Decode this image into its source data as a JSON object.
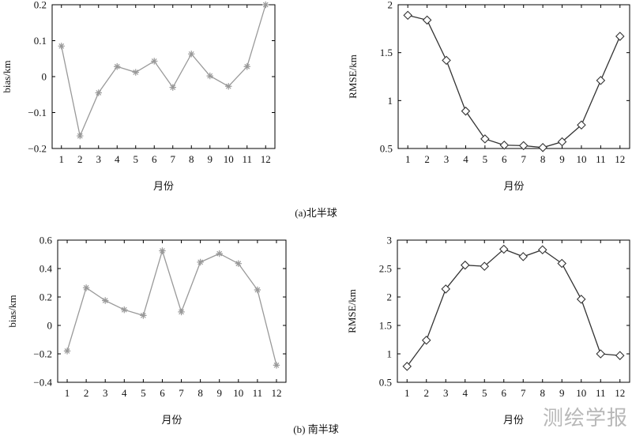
{
  "chart_data": [
    {
      "type": "line",
      "panel": "a",
      "x": [
        1,
        2,
        3,
        4,
        5,
        6,
        7,
        8,
        9,
        10,
        11,
        12
      ],
      "series": [
        {
          "values": [
            0.085,
            -0.165,
            -0.045,
            0.028,
            0.012,
            0.043,
            -0.03,
            0.063,
            0.002,
            -0.027,
            0.028,
            0.2
          ],
          "color": "#999999",
          "marker": "asterisk"
        }
      ],
      "xlabel": "月份",
      "ylabel": "bias/km",
      "xlim": [
        0.5,
        12.5
      ],
      "ylim": [
        -0.2,
        0.2
      ],
      "xticks": [
        "1",
        "2",
        "3",
        "4",
        "5",
        "6",
        "7",
        "8",
        "9",
        "10",
        "11",
        "12"
      ],
      "yticks": [
        {
          "value": -0.2,
          "label": "−0.2"
        },
        {
          "value": -0.1,
          "label": "−0.1"
        },
        {
          "value": 0,
          "label": "0"
        },
        {
          "value": 0.1,
          "label": "0.1"
        },
        {
          "value": 0.2,
          "label": "0.2"
        }
      ],
      "grid": false
    },
    {
      "type": "line",
      "panel": "a",
      "x": [
        1,
        2,
        3,
        4,
        5,
        6,
        7,
        8,
        9,
        10,
        11,
        12
      ],
      "series": [
        {
          "values": [
            1.89,
            1.84,
            1.42,
            0.89,
            0.6,
            0.535,
            0.53,
            0.51,
            0.57,
            0.745,
            1.21,
            1.67
          ],
          "color": "#333333",
          "marker": "diamond"
        }
      ],
      "xlabel": "月份",
      "ylabel": "RMSE/km",
      "xlim": [
        0.5,
        12.5
      ],
      "ylim": [
        0.5,
        2
      ],
      "xticks": [
        "1",
        "2",
        "3",
        "4",
        "5",
        "6",
        "7",
        "8",
        "9",
        "10",
        "11",
        "12"
      ],
      "yticks": [
        {
          "value": 0.5,
          "label": "0.5"
        },
        {
          "value": 1,
          "label": "1"
        },
        {
          "value": 1.5,
          "label": "1.5"
        },
        {
          "value": 2,
          "label": "2"
        }
      ],
      "grid": false
    },
    {
      "type": "line",
      "panel": "b",
      "x": [
        1,
        2,
        3,
        4,
        5,
        6,
        7,
        8,
        9,
        10,
        11,
        12
      ],
      "series": [
        {
          "values": [
            -0.18,
            0.265,
            0.175,
            0.11,
            0.07,
            0.525,
            0.095,
            0.445,
            0.505,
            0.435,
            0.25,
            -0.28
          ],
          "color": "#999999",
          "marker": "asterisk"
        }
      ],
      "xlabel": "月份",
      "ylabel": "bias/km",
      "xlim": [
        0.5,
        12.5
      ],
      "ylim": [
        -0.4,
        0.6
      ],
      "xticks": [
        "1",
        "2",
        "3",
        "4",
        "5",
        "6",
        "7",
        "8",
        "9",
        "10",
        "11",
        "12"
      ],
      "yticks": [
        {
          "value": -0.4,
          "label": "−0.4"
        },
        {
          "value": -0.2,
          "label": "−0.2"
        },
        {
          "value": 0,
          "label": "0"
        },
        {
          "value": 0.2,
          "label": "0.2"
        },
        {
          "value": 0.4,
          "label": "0.4"
        },
        {
          "value": 0.6,
          "label": "0.6"
        }
      ],
      "grid": false
    },
    {
      "type": "line",
      "panel": "b",
      "x": [
        1,
        2,
        3,
        4,
        5,
        6,
        7,
        8,
        9,
        10,
        11,
        12
      ],
      "series": [
        {
          "values": [
            0.78,
            1.24,
            2.14,
            2.56,
            2.54,
            2.84,
            2.71,
            2.83,
            2.59,
            1.96,
            1.0,
            0.97
          ],
          "color": "#333333",
          "marker": "diamond"
        }
      ],
      "xlabel": "月份",
      "ylabel": "RMSE/km",
      "xlim": [
        0.5,
        12.5
      ],
      "ylim": [
        0.5,
        3
      ],
      "xticks": [
        "1",
        "2",
        "3",
        "4",
        "5",
        "6",
        "7",
        "8",
        "9",
        "10",
        "11",
        "12"
      ],
      "yticks": [
        {
          "value": 0.5,
          "label": "0.5"
        },
        {
          "value": 1,
          "label": "1"
        },
        {
          "value": 1.5,
          "label": "1.5"
        },
        {
          "value": 2,
          "label": "2"
        },
        {
          "value": 2.5,
          "label": "2.5"
        },
        {
          "value": 3,
          "label": "3"
        }
      ],
      "grid": false
    }
  ],
  "captions": {
    "a": "(a)北半球",
    "b": "(b) 南半球"
  },
  "watermark": "测绘学报"
}
